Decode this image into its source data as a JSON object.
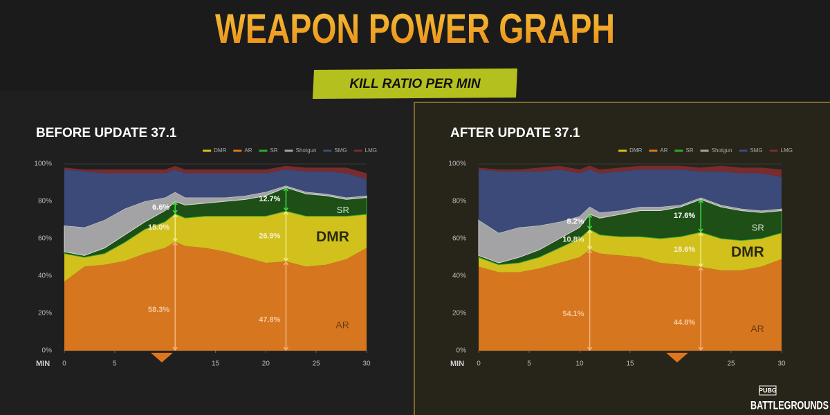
{
  "header": {
    "title": "WEAPON POWER GRAPH",
    "subtitle": "KILL RATIO PER MIN"
  },
  "logo": {
    "top": "PUBG",
    "bottom": "BATTLEGROUNDS"
  },
  "chart_data": [
    {
      "type": "area",
      "stacked": true,
      "title": "BEFORE UPDATE 37.1",
      "xlabel": "MIN",
      "x": [
        0,
        2,
        4,
        6,
        8,
        10,
        11,
        12,
        14,
        16,
        18,
        20,
        22,
        24,
        26,
        28,
        30
      ],
      "xlim": [
        0,
        30
      ],
      "xticks": [
        0,
        5,
        15,
        20,
        25,
        30
      ],
      "ylim": [
        0,
        100
      ],
      "yticks": [
        {
          "value": 0,
          "label": "0%"
        },
        {
          "value": 20,
          "label": "20%"
        },
        {
          "value": 40,
          "label": "40%"
        },
        {
          "value": 60,
          "label": "60%"
        },
        {
          "value": 80,
          "label": "80%"
        },
        {
          "value": 100,
          "label": "100%"
        }
      ],
      "grid": true,
      "legend": "top-right",
      "series": [
        {
          "name": "DMR",
          "color": "#d2c01c",
          "values": [
            15,
            5,
            6,
            10,
            13,
            14,
            15.0,
            15,
            17,
            19,
            22,
            25,
            26.9,
            27,
            26,
            23,
            18
          ],
          "value_labels": [
            null,
            null,
            null,
            null,
            null,
            null,
            "15.0%",
            null,
            null,
            null,
            null,
            null,
            "26.9%",
            null,
            null,
            null,
            null
          ]
        },
        {
          "name": "AR",
          "color": "#d6771f",
          "values": [
            37,
            45,
            46,
            48,
            52,
            55,
            58.3,
            56,
            55,
            53,
            50,
            47,
            47.8,
            45,
            46,
            49,
            55
          ],
          "value_labels": [
            null,
            null,
            null,
            null,
            null,
            null,
            "58.3%",
            null,
            null,
            null,
            null,
            null,
            "47.8%",
            null,
            null,
            null,
            null
          ]
        },
        {
          "name": "SR",
          "color": "#1d4f17",
          "values": [
            1,
            1,
            3,
            4,
            4,
            6,
            6.6,
            7,
            7,
            8,
            9,
            11,
            12.7,
            12,
            11,
            9,
            9
          ],
          "value_labels": [
            null,
            null,
            null,
            null,
            null,
            null,
            "6.6%",
            null,
            null,
            null,
            null,
            null,
            "12.7%",
            null,
            null,
            null,
            null
          ]
        },
        {
          "name": "Shotgun",
          "color": "#a3a3a6",
          "values": [
            14,
            15,
            15,
            14,
            11,
            7,
            5,
            4,
            3,
            2,
            2,
            2,
            1,
            1,
            1,
            1,
            1
          ]
        },
        {
          "name": "SMG",
          "color": "#3b4a78",
          "values": [
            30,
            30,
            25,
            19,
            15,
            13,
            12,
            13,
            13,
            13,
            12,
            10,
            8.6,
            11,
            12,
            13,
            9
          ]
        },
        {
          "name": "LMG",
          "color": "#7a2b2e",
          "values": [
            1,
            1,
            2,
            2,
            2,
            2,
            2,
            2,
            2,
            2,
            2,
            2,
            2,
            2,
            2,
            3,
            3
          ]
        }
      ]
    },
    {
      "type": "area",
      "stacked": true,
      "title": "AFTER UPDATE 37.1",
      "xlabel": "MIN",
      "x": [
        0,
        2,
        4,
        6,
        8,
        10,
        11,
        12,
        14,
        16,
        18,
        20,
        22,
        24,
        26,
        28,
        30
      ],
      "xlim": [
        0,
        30
      ],
      "xticks": [
        0,
        5,
        10,
        15,
        25,
        30
      ],
      "ylim": [
        0,
        100
      ],
      "yticks": [
        {
          "value": 0,
          "label": "0%"
        },
        {
          "value": 20,
          "label": "20%"
        },
        {
          "value": 40,
          "label": "40%"
        },
        {
          "value": 60,
          "label": "60%"
        },
        {
          "value": 80,
          "label": "80%"
        },
        {
          "value": 100,
          "label": "100%"
        }
      ],
      "grid": true,
      "legend": "top-right",
      "series": [
        {
          "name": "DMR",
          "color": "#d2c01c",
          "values": [
            5,
            4,
            5,
            6,
            8,
            10,
            10.8,
            10,
            10,
            11,
            13,
            15,
            18.6,
            17,
            16,
            15,
            14
          ],
          "value_labels": [
            null,
            null,
            null,
            null,
            null,
            null,
            "10.8%",
            null,
            null,
            null,
            null,
            null,
            "18.6%",
            null,
            null,
            null,
            null
          ]
        },
        {
          "name": "AR",
          "color": "#d6771f",
          "values": [
            45,
            42,
            42,
            44,
            47,
            50,
            54.1,
            52,
            51,
            50,
            47,
            46,
            44.8,
            43,
            43,
            45,
            49
          ],
          "value_labels": [
            null,
            null,
            null,
            null,
            null,
            null,
            "54.1%",
            null,
            null,
            null,
            null,
            null,
            "44.8%",
            null,
            null,
            null,
            null
          ]
        },
        {
          "name": "SR",
          "color": "#1d4f17",
          "values": [
            1,
            1,
            3,
            4,
            5,
            6,
            8.2,
            9,
            12,
            14,
            15,
            16,
            17.6,
            17,
            16,
            14,
            12
          ],
          "value_labels": [
            null,
            null,
            null,
            null,
            null,
            null,
            "8.2%",
            null,
            null,
            null,
            null,
            null,
            "17.6%",
            null,
            null,
            null,
            null
          ]
        },
        {
          "name": "Shotgun",
          "color": "#a3a3a6",
          "values": [
            19,
            16,
            16,
            13,
            9,
            6,
            4,
            3,
            2,
            2,
            2,
            1,
            1,
            1,
            1,
            1,
            1
          ]
        },
        {
          "name": "SMG",
          "color": "#3b4a78",
          "values": [
            27,
            33,
            30,
            29,
            28,
            23,
            20,
            21,
            21,
            20,
            20,
            19,
            14,
            18,
            19,
            20,
            17
          ]
        },
        {
          "name": "LMG",
          "color": "#7a2b2e",
          "values": [
            1,
            1,
            1,
            2,
            2,
            2,
            2,
            2,
            2,
            2,
            2,
            2,
            2,
            3,
            3,
            3,
            4
          ]
        }
      ]
    }
  ]
}
